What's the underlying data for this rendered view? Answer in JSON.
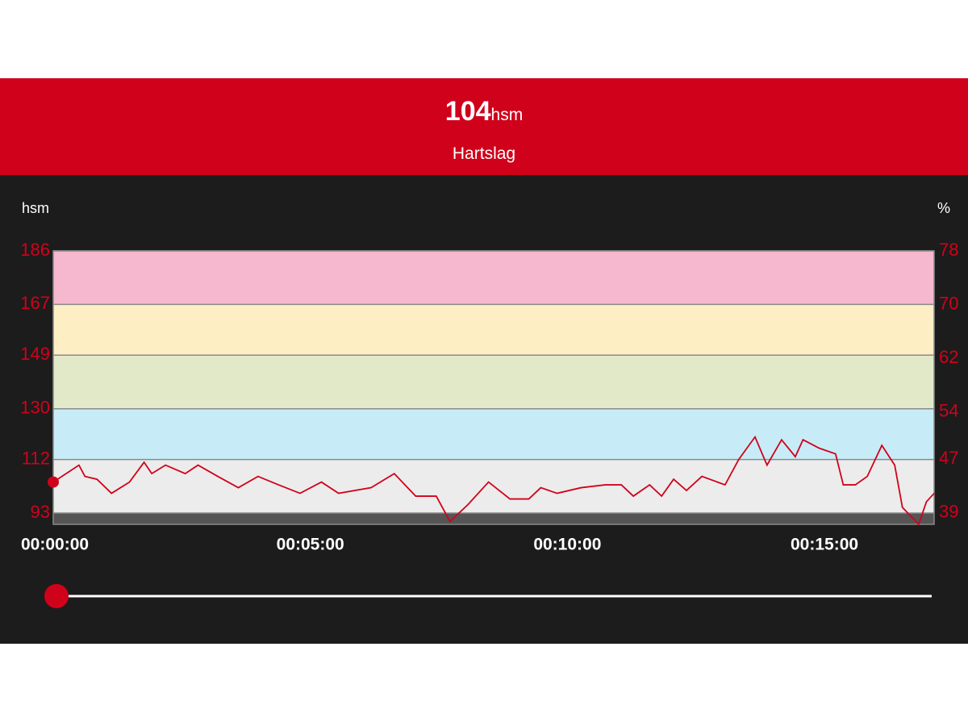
{
  "header": {
    "value": 104,
    "unit": "hsm",
    "label": "Hartslag"
  },
  "chart_data": {
    "type": "line",
    "y_label": "hsm",
    "y2_label": "%",
    "xlim": [
      0,
      1028
    ],
    "xticks": [
      {
        "value": 0,
        "label": "00:00:00"
      },
      {
        "value": 300,
        "label": "00:05:00"
      },
      {
        "value": 600,
        "label": "00:10:00"
      },
      {
        "value": 900,
        "label": "00:15:00"
      }
    ],
    "ylim": [
      89,
      186
    ],
    "yticks": [
      93,
      112,
      130,
      149,
      167,
      186
    ],
    "y2lim": [
      37.3,
      78
    ],
    "y2ticks": [
      39,
      47,
      54,
      62,
      70,
      78
    ],
    "zone_colors": [
      "#555555",
      "#ececec",
      "#c8ecf7",
      "#e2e9c9",
      "#fdeec4",
      "#f5b8cf"
    ],
    "x": [
      0,
      30,
      37,
      51,
      68,
      89,
      106,
      115,
      131,
      154,
      169,
      192,
      216,
      239,
      263,
      288,
      313,
      333,
      371,
      398,
      423,
      447,
      463,
      484,
      508,
      533,
      555,
      569,
      588,
      616,
      644,
      663,
      677,
      696,
      710,
      724,
      739,
      757,
      784,
      800,
      819,
      833,
      850,
      866,
      875,
      894,
      913,
      922,
      936,
      950,
      967,
      982,
      991,
      1010,
      1019,
      1028
    ],
    "series": [
      {
        "name": "hsm",
        "color": "#d0021b",
        "values": [
          104,
          110,
          106,
          105,
          100,
          104,
          111,
          107,
          110,
          107,
          110,
          106,
          102,
          106,
          103,
          100,
          104,
          100,
          102,
          107,
          99,
          99,
          90,
          96,
          104,
          98,
          98,
          102,
          100,
          102,
          103,
          103,
          99,
          103,
          99,
          105,
          101,
          106,
          103,
          112,
          120,
          110,
          119,
          113,
          119,
          116,
          114,
          103,
          103,
          106,
          117,
          110,
          95,
          89,
          97,
          100
        ]
      }
    ]
  }
}
